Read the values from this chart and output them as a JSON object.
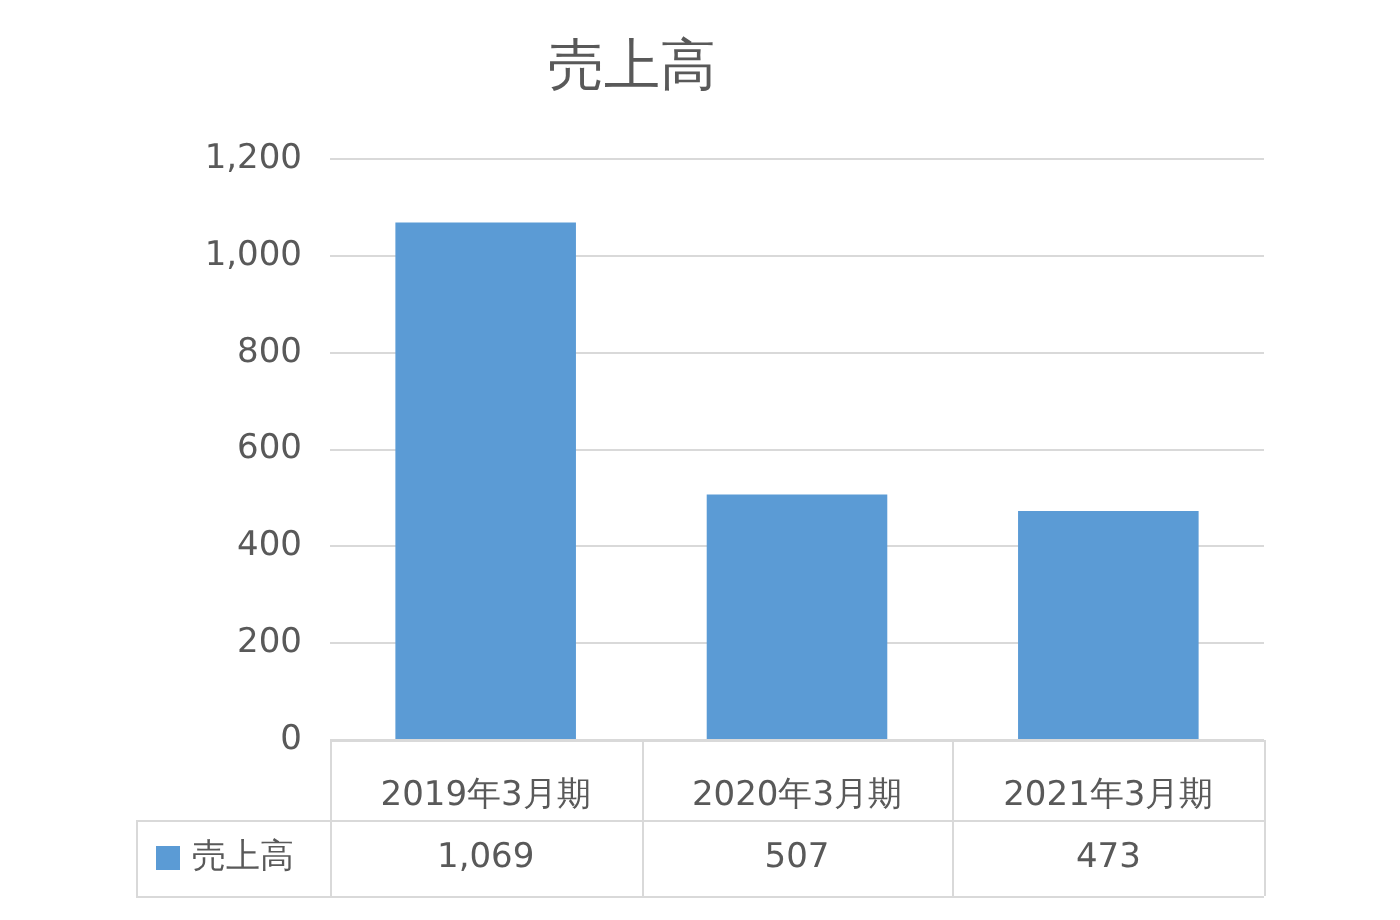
{
  "chart_data": {
    "type": "bar",
    "title": "売上高",
    "categories": [
      "2019年3月期",
      "2020年3月期",
      "2021年3月期"
    ],
    "series": [
      {
        "name": "売上高",
        "color": "#5b9bd5",
        "values": [
          1069,
          507,
          473
        ],
        "value_labels": [
          "1,069",
          "507",
          "473"
        ]
      }
    ],
    "ylim": [
      0,
      1200
    ],
    "yticks": [
      {
        "value": 0,
        "label": "0"
      },
      {
        "value": 200,
        "label": "200"
      },
      {
        "value": 400,
        "label": "400"
      },
      {
        "value": 600,
        "label": "600"
      },
      {
        "value": 800,
        "label": "800"
      },
      {
        "value": 1000,
        "label": "1,000"
      },
      {
        "value": 1200,
        "label": "1,200"
      }
    ],
    "grid": "y",
    "legend": "bottom"
  }
}
